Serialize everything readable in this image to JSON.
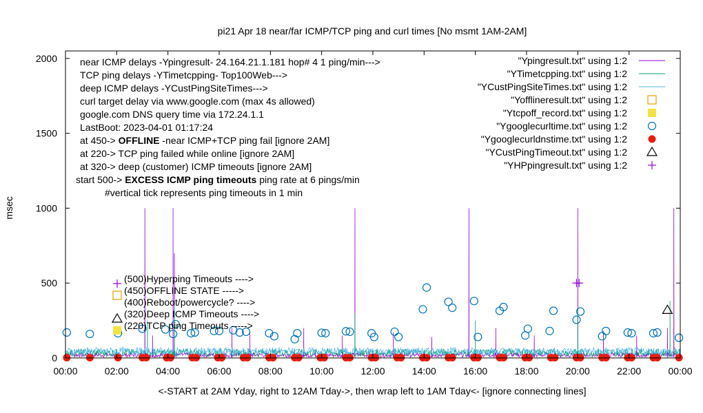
{
  "chart_data": {
    "type": "line",
    "title": "pi21 Apr 18  near/far ICMP/TCP ping and curl times [No msmt 1AM-2AM]",
    "xlabel": "<-START at 2AM Yday, right to 12AM Tday->, then wrap left to 1AM Tday<- [ignore connecting lines]",
    "ylabel": "msec",
    "xlim": [
      0,
      24
    ],
    "ylim": [
      0,
      2050
    ],
    "x_ticks": [
      "00:00",
      "02:00",
      "04:00",
      "06:00",
      "08:00",
      "10:00",
      "12:00",
      "14:00",
      "16:00",
      "18:00",
      "20:00",
      "22:00",
      "00:00"
    ],
    "y_ticks": [
      0,
      500,
      1000,
      1500,
      2000
    ],
    "legend_position": "top-right",
    "legend": [
      {
        "label": "\"Ypingresult.txt\" using 1:2",
        "symbol": "line",
        "color": "#9400d3"
      },
      {
        "label": "\"YTimetcpping.txt\" using 1:2",
        "symbol": "line",
        "color": "#009e73"
      },
      {
        "label": "\"YCustPingSiteTimes.txt\" using 1:2",
        "symbol": "line",
        "color": "#56b4e9"
      },
      {
        "label": "\"Yofflineresult.txt\" using 1:2",
        "symbol": "open-square",
        "color": "#e69f00"
      },
      {
        "label": "\"Ytcpoff_record.txt\" using 1:2",
        "symbol": "filled-square",
        "color": "#f0e442"
      },
      {
        "label": "\"Ygooglecurltime.txt\" using 1:2",
        "symbol": "open-circle",
        "color": "#0072b2"
      },
      {
        "label": "\"Ygooglecurldnstime.txt\" using 1:2",
        "symbol": "filled-circle",
        "color": "#e51e10"
      },
      {
        "label": "\"YCustPingTimeout.txt\" using 1:2",
        "symbol": "open-triangle",
        "color": "#000000"
      },
      {
        "label": "\"YHPpingresult.txt\" using 1:2",
        "symbol": "plus",
        "color": "#9400d3"
      }
    ],
    "info_lines": [
      "near ICMP delays -Ypingresult- 24.164.21.1.181 hop# 4 1 ping/min--->",
      "TCP ping delays -YTimetcpping- Top100Web--->",
      "deep ICMP delays -YCustPingSiteTimes--->",
      "curl target delay via www.google.com (max 4s allowed)",
      "google.com DNS query time via 172.24.1.1",
      "LastBoot: 2023-04-01 01:17:24"
    ],
    "threshold_notes": [
      {
        "prefix": "at 450-> ",
        "bold": "OFFLINE",
        "suffix": " -near ICMP+TCP ping fail [ignore 2AM]"
      },
      {
        "prefix": "at 220-> TCP ping failed while online [ignore 2AM]",
        "bold": "",
        "suffix": ""
      },
      {
        "prefix": "at 320-> deep (customer) ICMP timeouts [ignore 2AM]",
        "bold": "",
        "suffix": ""
      },
      {
        "prefix": "start 500-> ",
        "bold": "EXCESS ICMP ping timeouts",
        "suffix": " ping rate at 6 pings/min"
      }
    ],
    "tick_note": "#vertical tick represents ping timeouts in 1 min",
    "marker_legend": [
      {
        "label": "(500)Hyperping Timeouts ---->",
        "value": 500,
        "symbol": "plus",
        "color": "#9400d3"
      },
      {
        "label": "(450)OFFLINE STATE ----->",
        "value": 450,
        "symbol": "open-square",
        "color": "#e69f00"
      },
      {
        "label": "(400)Reboot/powercycle? ---->",
        "value": 400,
        "symbol": "none",
        "color": "#000000"
      },
      {
        "label": "(320)Deep ICMP Timeouts ---->",
        "value": 320,
        "symbol": "open-triangle",
        "color": "#000000"
      },
      {
        "label": "(220)TCP ping Timeouts ----->",
        "value": 220,
        "symbol": "filled-square",
        "color": "#f0e442"
      }
    ],
    "series": [
      {
        "name": "\"Ypingresult.txt\" using 1:2",
        "color": "#9400d3",
        "baseline": [
          5,
          35
        ],
        "spikes": [
          {
            "x": 3.1,
            "y": 1000
          },
          {
            "x": 4.2,
            "y": 1000
          },
          {
            "x": 4.25,
            "y": 700
          },
          {
            "x": 11.3,
            "y": 1000
          },
          {
            "x": 15.75,
            "y": 1000
          },
          {
            "x": 20.0,
            "y": 1000
          },
          {
            "x": 23.75,
            "y": 1000
          },
          {
            "x": 3.4,
            "y": 150
          },
          {
            "x": 6.5,
            "y": 200
          },
          {
            "x": 7.2,
            "y": 180
          },
          {
            "x": 9.3,
            "y": 200
          },
          {
            "x": 10.8,
            "y": 150
          },
          {
            "x": 12.8,
            "y": 170
          },
          {
            "x": 14.3,
            "y": 140
          },
          {
            "x": 16.8,
            "y": 200
          },
          {
            "x": 18.3,
            "y": 150
          },
          {
            "x": 21.0,
            "y": 180
          },
          {
            "x": 22.3,
            "y": 150
          },
          {
            "x": 23.5,
            "y": 200
          }
        ]
      },
      {
        "name": "\"YTimetcpping.txt\" using 1:2",
        "color": "#009e73",
        "baseline": [
          10,
          60
        ],
        "spikes": [
          {
            "x": 3.2,
            "y": 250
          },
          {
            "x": 4.25,
            "y": 350
          },
          {
            "x": 11.3,
            "y": 300
          },
          {
            "x": 20.0,
            "y": 330
          },
          {
            "x": 23.6,
            "y": 380
          },
          {
            "x": 16.0,
            "y": 250
          }
        ]
      },
      {
        "name": "\"YCustPingSiteTimes.txt\" using 1:2",
        "color": "#56b4e9",
        "baseline": [
          20,
          70
        ],
        "spikes": []
      },
      {
        "name": "\"Ygooglecurltime.txt\" using 1:2",
        "color": "#0072b2",
        "points": [
          [
            0.05,
            170
          ],
          [
            0.95,
            160
          ],
          [
            2.05,
            165
          ],
          [
            3.0,
            195
          ],
          [
            3.9,
            190
          ],
          [
            4.2,
            160
          ],
          [
            4.3,
            225
          ],
          [
            4.9,
            165
          ],
          [
            5.05,
            170
          ],
          [
            5.8,
            180
          ],
          [
            6.0,
            180
          ],
          [
            6.55,
            185
          ],
          [
            6.8,
            170
          ],
          [
            7.05,
            175
          ],
          [
            7.95,
            165
          ],
          [
            8.15,
            145
          ],
          [
            8.95,
            125
          ],
          [
            9.05,
            165
          ],
          [
            10.0,
            168
          ],
          [
            10.15,
            165
          ],
          [
            10.95,
            178
          ],
          [
            11.1,
            175
          ],
          [
            11.95,
            165
          ],
          [
            12.05,
            140
          ],
          [
            12.85,
            175
          ],
          [
            13.0,
            140
          ],
          [
            13.95,
            325
          ],
          [
            14.1,
            470
          ],
          [
            14.95,
            375
          ],
          [
            15.1,
            335
          ],
          [
            15.95,
            380
          ],
          [
            16.1,
            140
          ],
          [
            16.95,
            315
          ],
          [
            17.1,
            340
          ],
          [
            17.95,
            150
          ],
          [
            18.05,
            195
          ],
          [
            18.9,
            180
          ],
          [
            19.05,
            315
          ],
          [
            19.95,
            255
          ],
          [
            20.1,
            310
          ],
          [
            20.95,
            145
          ],
          [
            21.1,
            180
          ],
          [
            21.95,
            170
          ],
          [
            22.1,
            165
          ],
          [
            22.95,
            165
          ],
          [
            23.1,
            170
          ],
          [
            23.95,
            135
          ]
        ]
      },
      {
        "name": "\"Ygooglecurldnstime.txt\" using 1:2",
        "color": "#e51e10",
        "points": [
          [
            0.05,
            2
          ],
          [
            0.95,
            2
          ],
          [
            2.05,
            2
          ],
          [
            3.0,
            2
          ],
          [
            3.15,
            2
          ],
          [
            3.95,
            2
          ],
          [
            4.1,
            2
          ],
          [
            4.95,
            2
          ],
          [
            5.1,
            2
          ],
          [
            5.95,
            2
          ],
          [
            6.1,
            2
          ],
          [
            6.95,
            2
          ],
          [
            7.1,
            2
          ],
          [
            7.95,
            2
          ],
          [
            8.1,
            2
          ],
          [
            8.95,
            2
          ],
          [
            9.1,
            2
          ],
          [
            9.95,
            2
          ],
          [
            10.1,
            2
          ],
          [
            10.95,
            2
          ],
          [
            11.1,
            2
          ],
          [
            11.95,
            2
          ],
          [
            12.1,
            2
          ],
          [
            12.95,
            2
          ],
          [
            13.1,
            2
          ],
          [
            13.95,
            2
          ],
          [
            14.1,
            2
          ],
          [
            14.95,
            2
          ],
          [
            15.1,
            2
          ],
          [
            15.95,
            2
          ],
          [
            16.1,
            2
          ],
          [
            16.95,
            2
          ],
          [
            17.1,
            2
          ],
          [
            17.95,
            2
          ],
          [
            18.1,
            2
          ],
          [
            18.95,
            2
          ],
          [
            19.1,
            2
          ],
          [
            19.95,
            2
          ],
          [
            20.1,
            2
          ],
          [
            20.95,
            2
          ],
          [
            21.1,
            2
          ],
          [
            21.95,
            2
          ],
          [
            22.1,
            2
          ],
          [
            22.95,
            2
          ],
          [
            23.1,
            2
          ],
          [
            23.95,
            2
          ]
        ]
      },
      {
        "name": "\"YCustPingTimeout.txt\" using 1:2",
        "color": "#000000",
        "points": [
          [
            23.5,
            320
          ]
        ]
      },
      {
        "name": "\"YHPpingresult.txt\" using 1:2",
        "color": "#9400d3",
        "points": [
          [
            19.95,
            500
          ],
          [
            20.05,
            500
          ]
        ]
      }
    ]
  }
}
